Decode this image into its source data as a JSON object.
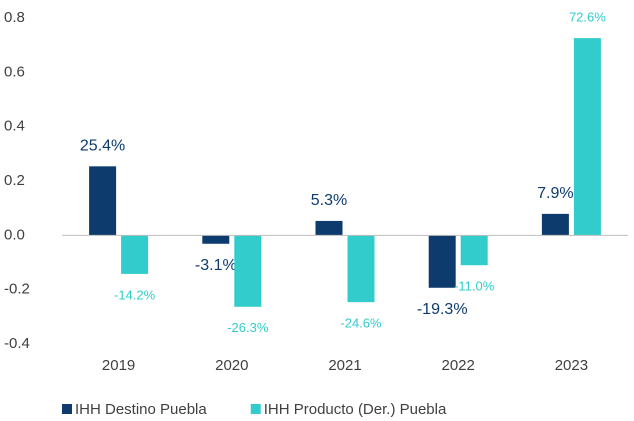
{
  "chart_data": {
    "type": "bar",
    "categories": [
      "2019",
      "2020",
      "2021",
      "2022",
      "2023"
    ],
    "series": [
      {
        "name": "IHH Destino Puebla",
        "color": "#0d3b6e",
        "values": [
          0.254,
          -0.031,
          0.053,
          -0.193,
          0.079
        ],
        "value_labels": [
          "25.4%",
          "-3.1%",
          "5.3%",
          "-19.3%",
          "7.9%"
        ]
      },
      {
        "name": "IHH Producto (Der.) Puebla",
        "color": "#33cccc",
        "values": [
          -0.142,
          -0.263,
          -0.246,
          -0.11,
          0.726
        ],
        "value_labels": [
          "-14.2%",
          "-26.3%",
          "-24.6%",
          "-11.0%",
          "72.6%"
        ]
      }
    ],
    "ylim": [
      -0.4,
      0.8
    ],
    "yticks": [
      -0.4,
      -0.2,
      {
        "value": 0,
        "label": "0.0"
      },
      0.2,
      0.4,
      0.6,
      0.8
    ],
    "grid": false,
    "legend": "bottom"
  }
}
